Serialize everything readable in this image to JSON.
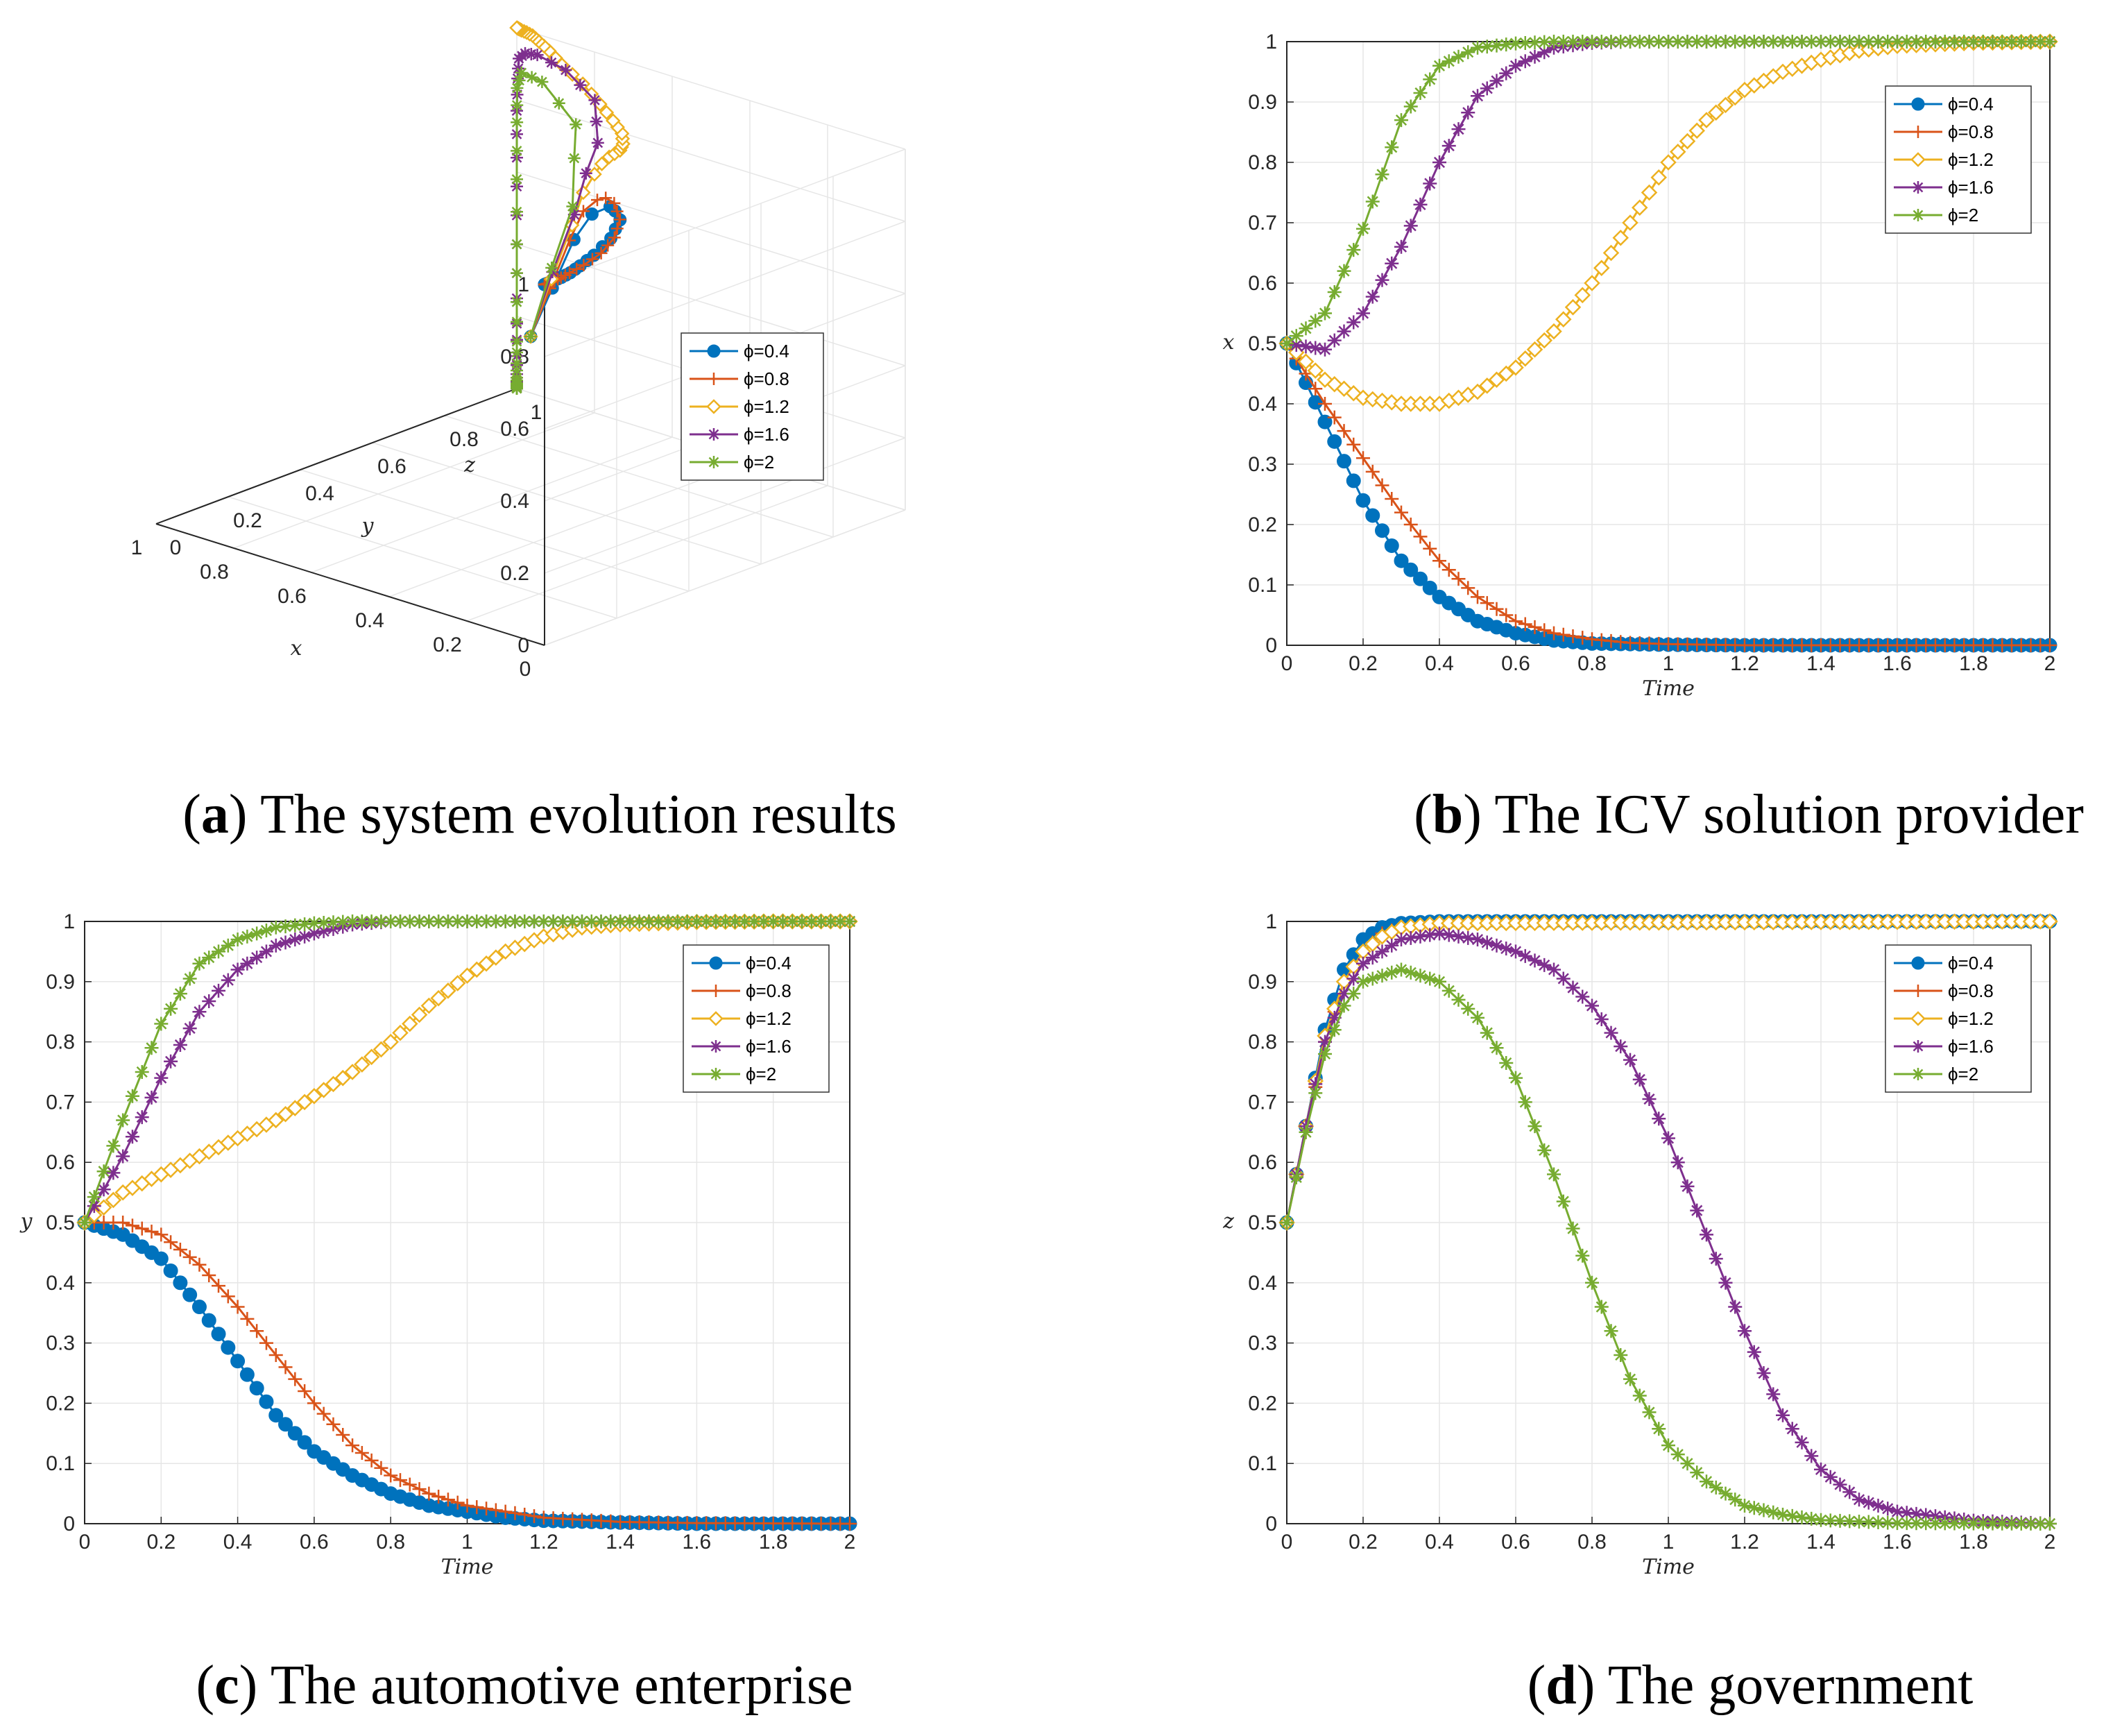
{
  "figure": {
    "captions": [
      {
        "letter": "a",
        "pre": "(",
        "post": ") The system evolution results"
      },
      {
        "letter": "b",
        "pre": "(",
        "post": ") The ICV solution provider"
      },
      {
        "letter": "c",
        "pre": "(",
        "post": ") The automotive enterprise"
      },
      {
        "letter": "d",
        "pre": "(",
        "post": ") The government"
      }
    ]
  },
  "colors": {
    "phi_0_4": "#0072BD",
    "phi_0_8": "#D95319",
    "phi_1_2": "#EDB120",
    "phi_1_6": "#7E2F8E",
    "phi_2": "#77AC30",
    "grid": "#e6e6e6",
    "axis": "#262626"
  },
  "chart_data": [
    {
      "id": "a",
      "type": "line3d",
      "xlabel": "x",
      "ylabel": "y",
      "zlabel": "z",
      "xticks": [
        "0",
        "0.2",
        "0.4",
        "0.6",
        "0.8",
        "1"
      ],
      "yticks": [
        "0",
        "0.2",
        "0.4",
        "0.6",
        "0.8",
        "1"
      ],
      "zticks": [
        "0",
        "0.2",
        "0.4",
        "0.6",
        "0.8",
        "1"
      ],
      "legend": [
        "ϕ=0.4",
        "ϕ=0.8",
        "ϕ=1.2",
        "ϕ=1.6",
        "ϕ=2"
      ],
      "series_names": [
        "ϕ=0.4",
        "ϕ=0.8",
        "ϕ=1.2",
        "ϕ=1.6",
        "ϕ=2"
      ]
    },
    {
      "id": "b",
      "type": "line",
      "xlabel": "Time",
      "ylabel": "x",
      "xlim": [
        0,
        2
      ],
      "ylim": [
        0,
        1
      ],
      "xticks": [
        "0",
        "0.2",
        "0.4",
        "0.6",
        "0.8",
        "1",
        "1.2",
        "1.4",
        "1.6",
        "1.8",
        "2"
      ],
      "yticks": [
        "0",
        "0.1",
        "0.2",
        "0.3",
        "0.4",
        "0.5",
        "0.6",
        "0.7",
        "0.8",
        "0.9",
        "1"
      ],
      "legend": [
        "ϕ=0.4",
        "ϕ=0.8",
        "ϕ=1.2",
        "ϕ=1.6",
        "ϕ=2"
      ],
      "series": [
        {
          "name": "ϕ=0.4",
          "x": [
            0,
            0.1,
            0.2,
            0.3,
            0.4,
            0.5,
            0.6,
            0.7,
            0.8,
            1,
            1.2,
            1.5,
            2
          ],
          "values": [
            0.5,
            0.37,
            0.24,
            0.14,
            0.08,
            0.04,
            0.02,
            0.008,
            0.003,
            0.001,
            0,
            0,
            0
          ]
        },
        {
          "name": "ϕ=0.8",
          "x": [
            0,
            0.1,
            0.2,
            0.3,
            0.4,
            0.5,
            0.6,
            0.7,
            0.8,
            0.9,
            1,
            1.2,
            2
          ],
          "values": [
            0.5,
            0.4,
            0.31,
            0.22,
            0.14,
            0.08,
            0.04,
            0.02,
            0.01,
            0.004,
            0.002,
            0,
            0
          ]
        },
        {
          "name": "ϕ=1.2",
          "x": [
            0,
            0.1,
            0.2,
            0.3,
            0.4,
            0.5,
            0.6,
            0.7,
            0.8,
            0.9,
            1,
            1.1,
            1.2,
            1.3,
            1.4,
            1.5,
            1.6,
            1.8,
            2
          ],
          "values": [
            0.5,
            0.44,
            0.41,
            0.4,
            0.4,
            0.42,
            0.46,
            0.52,
            0.6,
            0.7,
            0.8,
            0.87,
            0.92,
            0.95,
            0.97,
            0.985,
            0.993,
            0.998,
            1
          ]
        },
        {
          "name": "ϕ=1.6",
          "x": [
            0,
            0.1,
            0.2,
            0.3,
            0.4,
            0.5,
            0.6,
            0.7,
            0.8,
            0.9,
            1,
            2
          ],
          "values": [
            0.5,
            0.49,
            0.55,
            0.66,
            0.8,
            0.91,
            0.96,
            0.99,
            0.998,
            1,
            1,
            1
          ]
        },
        {
          "name": "ϕ=2",
          "x": [
            0,
            0.1,
            0.2,
            0.3,
            0.4,
            0.5,
            0.6,
            0.7,
            0.8,
            2
          ],
          "values": [
            0.5,
            0.55,
            0.69,
            0.87,
            0.96,
            0.99,
            0.997,
            1,
            1,
            1
          ]
        }
      ]
    },
    {
      "id": "c",
      "type": "line",
      "xlabel": "Time",
      "ylabel": "y",
      "xlim": [
        0,
        2
      ],
      "ylim": [
        0,
        1
      ],
      "xticks": [
        "0",
        "0.2",
        "0.4",
        "0.6",
        "0.8",
        "1",
        "1.2",
        "1.4",
        "1.6",
        "1.8",
        "2"
      ],
      "yticks": [
        "0",
        "0.1",
        "0.2",
        "0.3",
        "0.4",
        "0.5",
        "0.6",
        "0.7",
        "0.8",
        "0.9",
        "1"
      ],
      "legend": [
        "ϕ=0.4",
        "ϕ=0.8",
        "ϕ=1.2",
        "ϕ=1.6",
        "ϕ=2"
      ],
      "series": [
        {
          "name": "ϕ=0.4",
          "x": [
            0,
            0.1,
            0.2,
            0.3,
            0.4,
            0.5,
            0.6,
            0.7,
            0.8,
            0.9,
            1,
            1.1,
            1.2,
            1.4,
            1.6,
            2
          ],
          "values": [
            0.5,
            0.48,
            0.44,
            0.36,
            0.27,
            0.18,
            0.12,
            0.08,
            0.05,
            0.03,
            0.02,
            0.01,
            0.005,
            0.002,
            0,
            0
          ]
        },
        {
          "name": "ϕ=0.8",
          "x": [
            0,
            0.1,
            0.2,
            0.3,
            0.4,
            0.5,
            0.6,
            0.7,
            0.8,
            0.9,
            1,
            1.1,
            1.2,
            1.4,
            1.6,
            2
          ],
          "values": [
            0.5,
            0.5,
            0.48,
            0.43,
            0.36,
            0.28,
            0.2,
            0.13,
            0.08,
            0.05,
            0.03,
            0.02,
            0.01,
            0.003,
            0.001,
            0
          ]
        },
        {
          "name": "ϕ=1.2",
          "x": [
            0,
            0.1,
            0.2,
            0.3,
            0.4,
            0.5,
            0.6,
            0.7,
            0.8,
            0.9,
            1,
            1.1,
            1.2,
            1.3,
            1.4,
            1.6,
            1.8,
            2
          ],
          "values": [
            0.5,
            0.55,
            0.58,
            0.61,
            0.64,
            0.67,
            0.71,
            0.75,
            0.8,
            0.86,
            0.91,
            0.95,
            0.975,
            0.99,
            0.995,
            0.999,
            1,
            1
          ]
        },
        {
          "name": "ϕ=1.6",
          "x": [
            0,
            0.1,
            0.2,
            0.3,
            0.4,
            0.5,
            0.6,
            0.7,
            0.8,
            2
          ],
          "values": [
            0.5,
            0.61,
            0.74,
            0.85,
            0.92,
            0.96,
            0.98,
            0.995,
            1,
            1
          ]
        },
        {
          "name": "ϕ=2",
          "x": [
            0,
            0.1,
            0.2,
            0.3,
            0.4,
            0.5,
            0.6,
            0.7,
            2
          ],
          "values": [
            0.5,
            0.67,
            0.83,
            0.93,
            0.97,
            0.99,
            0.997,
            1,
            1
          ]
        }
      ]
    },
    {
      "id": "d",
      "type": "line",
      "xlabel": "Time",
      "ylabel": "z",
      "xlim": [
        0,
        2
      ],
      "ylim": [
        0,
        1
      ],
      "xticks": [
        "0",
        "0.2",
        "0.4",
        "0.6",
        "0.8",
        "1",
        "1.2",
        "1.4",
        "1.6",
        "1.8",
        "2"
      ],
      "yticks": [
        "0",
        "0.1",
        "0.2",
        "0.3",
        "0.4",
        "0.5",
        "0.6",
        "0.7",
        "0.8",
        "0.9",
        "1"
      ],
      "legend": [
        "ϕ=0.4",
        "ϕ=0.8",
        "ϕ=1.2",
        "ϕ=1.6",
        "ϕ=2"
      ],
      "series": [
        {
          "name": "ϕ=0.4",
          "x": [
            0,
            0.05,
            0.1,
            0.15,
            0.2,
            0.25,
            0.3,
            0.4,
            2
          ],
          "values": [
            0.5,
            0.66,
            0.82,
            0.92,
            0.97,
            0.99,
            0.997,
            1,
            1
          ]
        },
        {
          "name": "ϕ=0.8",
          "x": [
            0,
            0.05,
            0.1,
            0.15,
            0.2,
            0.25,
            0.3,
            0.4,
            2
          ],
          "values": [
            0.5,
            0.65,
            0.8,
            0.9,
            0.95,
            0.98,
            0.99,
            0.998,
            1
          ]
        },
        {
          "name": "ϕ=1.2",
          "x": [
            0,
            0.05,
            0.1,
            0.15,
            0.2,
            0.25,
            0.3,
            0.4,
            2
          ],
          "values": [
            0.5,
            0.66,
            0.81,
            0.9,
            0.95,
            0.975,
            0.99,
            0.997,
            1
          ]
        },
        {
          "name": "ϕ=1.6",
          "x": [
            0,
            0.05,
            0.1,
            0.15,
            0.2,
            0.3,
            0.4,
            0.5,
            0.6,
            0.7,
            0.8,
            0.9,
            1,
            1.1,
            1.2,
            1.3,
            1.4,
            1.5,
            1.6,
            1.8,
            2
          ],
          "values": [
            0.5,
            0.66,
            0.8,
            0.88,
            0.93,
            0.97,
            0.98,
            0.97,
            0.95,
            0.92,
            0.86,
            0.77,
            0.64,
            0.48,
            0.32,
            0.18,
            0.09,
            0.04,
            0.02,
            0.005,
            0
          ]
        },
        {
          "name": "ϕ=2",
          "x": [
            0,
            0.05,
            0.1,
            0.15,
            0.2,
            0.3,
            0.4,
            0.5,
            0.6,
            0.7,
            0.8,
            0.9,
            1,
            1.1,
            1.2,
            1.3,
            1.4,
            1.6,
            2
          ],
          "values": [
            0.5,
            0.65,
            0.78,
            0.86,
            0.9,
            0.92,
            0.9,
            0.84,
            0.74,
            0.58,
            0.4,
            0.24,
            0.13,
            0.07,
            0.03,
            0.015,
            0.006,
            0.001,
            0
          ]
        }
      ]
    }
  ]
}
